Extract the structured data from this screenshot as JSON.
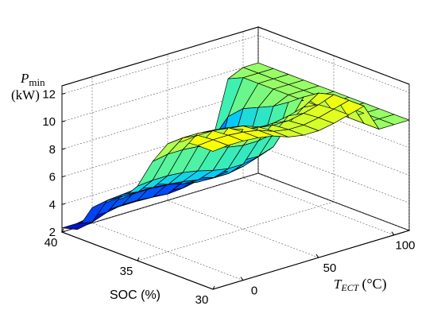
{
  "chart_data": {
    "type": "surface",
    "zlabel_symbol": "P",
    "zlabel_subscript": "min",
    "zlabel_unit": "(kW)",
    "xlabel": "SOC (%)",
    "ylabel_symbol": "T",
    "ylabel_subscript": "ECT",
    "ylabel_unit": "(°C)",
    "x_ticks": [
      "40",
      "35",
      "30"
    ],
    "y_ticks": [
      "0",
      "50",
      "100"
    ],
    "z_ticks": [
      "2",
      "4",
      "6",
      "8",
      "10",
      "12"
    ],
    "xlim": [
      30,
      40
    ],
    "ylim": [
      -20,
      110
    ],
    "zlim": [
      2,
      12.6
    ],
    "grid": true,
    "colormap": [
      "#0000b0",
      "#0050ff",
      "#00c8ff",
      "#40f0b0",
      "#a0ff60",
      "#ffff00"
    ],
    "soc": [
      40,
      39,
      38,
      37,
      36,
      35,
      34,
      33,
      32,
      31,
      30
    ],
    "tect": [
      -20,
      -10,
      0,
      10,
      20,
      30,
      40,
      50,
      60,
      70,
      80,
      90,
      100,
      110
    ],
    "z": [
      [
        2.3,
        2.3,
        2.5,
        2.6,
        2.6,
        2.6,
        2.6,
        2.7,
        2.8,
        3.1,
        5.5,
        9.5,
        10.0,
        10.0
      ],
      [
        2.6,
        2.8,
        3.2,
        3.4,
        3.4,
        3.3,
        3.2,
        3.3,
        3.5,
        3.6,
        7.5,
        10.0,
        10.0,
        10.0
      ],
      [
        4.6,
        4.8,
        4.9,
        5.0,
        5.0,
        4.7,
        4.5,
        4.5,
        4.7,
        5.1,
        8.5,
        10.0,
        10.0,
        10.0
      ],
      [
        5.4,
        5.5,
        5.5,
        5.5,
        5.4,
        5.1,
        4.9,
        4.9,
        5.0,
        5.5,
        9.0,
        10.0,
        10.0,
        10.0
      ],
      [
        6.1,
        6.2,
        6.2,
        6.1,
        6.0,
        5.8,
        5.6,
        5.6,
        5.8,
        6.2,
        9.5,
        10.0,
        10.0,
        10.0
      ],
      [
        7.4,
        7.5,
        7.5,
        7.4,
        7.2,
        6.9,
        6.7,
        6.7,
        6.9,
        7.3,
        10.2,
        10.0,
        10.0,
        10.0
      ],
      [
        9.6,
        9.8,
        9.8,
        9.7,
        9.4,
        9.0,
        8.8,
        8.8,
        9.0,
        9.4,
        11.0,
        10.0,
        10.0,
        10.0
      ],
      [
        11.3,
        11.4,
        11.4,
        11.3,
        11.1,
        10.7,
        10.5,
        10.5,
        10.7,
        11.0,
        11.7,
        10.0,
        10.0,
        10.0
      ],
      [
        11.9,
        12.0,
        12.0,
        11.9,
        11.7,
        11.3,
        11.1,
        11.1,
        11.3,
        11.6,
        12.0,
        10.0,
        10.0,
        10.0
      ],
      [
        12.0,
        12.1,
        12.1,
        12.0,
        11.8,
        11.4,
        11.2,
        11.2,
        11.4,
        11.7,
        12.0,
        10.0,
        10.0,
        10.0
      ],
      [
        12.0,
        12.1,
        12.1,
        12.0,
        11.8,
        11.4,
        11.2,
        11.2,
        11.4,
        11.7,
        12.0,
        10.0,
        10.0,
        10.0
      ]
    ]
  }
}
